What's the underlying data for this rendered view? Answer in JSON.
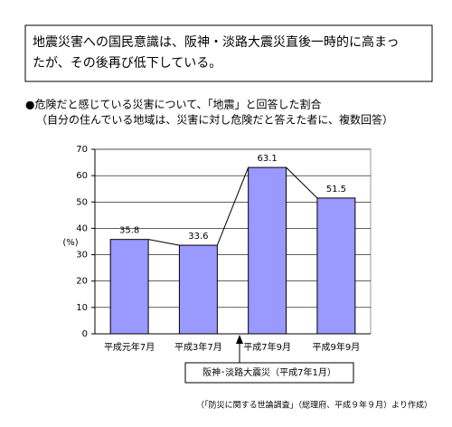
{
  "header": {
    "lines": [
      "地震災害への国民意識は、阪神・淡路大震災直後一時的に高まっ",
      "たが、その後再び低下している。"
    ]
  },
  "chart_data": {
    "type": "bar",
    "title": "●危険だと感じている災害について、「地震」と回答した割合",
    "subtitle": "（自分の住んでいる地域は、災害に対し危険だと答えた者に、複数回答）",
    "y_label": "(%)",
    "categories": [
      "平成元年7月",
      "平成3年7月",
      "平成7年9月",
      "平成9年9月"
    ],
    "values": [
      35.8,
      33.6,
      63.1,
      51.5
    ],
    "color": "#9999ff",
    "ylim": [
      0,
      70
    ],
    "yticks": [
      0,
      10,
      20,
      30,
      40,
      50,
      60,
      70
    ],
    "grid": true,
    "annotation": "阪神･淡路大震災（平成7年1月）",
    "source": "（「防災に関する世論調査」（総理府、平成９年９月）より作成）"
  }
}
